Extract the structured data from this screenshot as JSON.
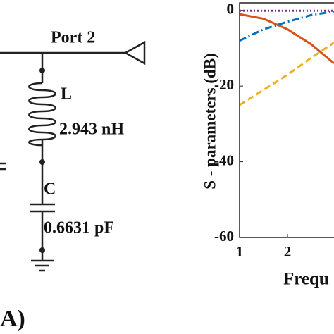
{
  "diagram": {
    "port_label": "Port 2",
    "inductor_label": "L",
    "inductor_value": "2.943 nH",
    "capacitor_label": "C",
    "capacitor_value": "0.6631 pF",
    "panel_label": "A)"
  },
  "chart_data": {
    "type": "line",
    "ylabel": "S - parameters (dB)",
    "xlabel": "Frequ",
    "xlim": [
      1,
      2.97
    ],
    "xticks": [
      1,
      2
    ],
    "ylim": [
      -60,
      2
    ],
    "yticks": [
      0,
      -20,
      -40,
      -60
    ],
    "series": [
      {
        "color": "#d95319",
        "dash": "solid",
        "x": [
          1,
          1.5,
          2,
          2.5,
          2.97
        ],
        "values": [
          -1,
          -2.2,
          -5,
          -9,
          -14
        ]
      },
      {
        "color": "#0072bd",
        "dash": "dashdot",
        "x": [
          1,
          1.5,
          2,
          2.5,
          2.97
        ],
        "values": [
          -8,
          -5,
          -3,
          -1.2,
          -0.3
        ]
      },
      {
        "color": "#edb120",
        "dash": "dashed",
        "x": [
          1,
          1.5,
          2,
          2.5,
          2.97
        ],
        "values": [
          -25,
          -21,
          -17,
          -12.5,
          -8.5
        ]
      },
      {
        "color": "#7e2f8e",
        "dash": "dotted",
        "x": [
          1,
          1.5,
          2,
          2.5,
          2.97
        ],
        "values": [
          -0.1,
          -0.1,
          -0.1,
          -0.1,
          -0.1
        ]
      }
    ]
  }
}
